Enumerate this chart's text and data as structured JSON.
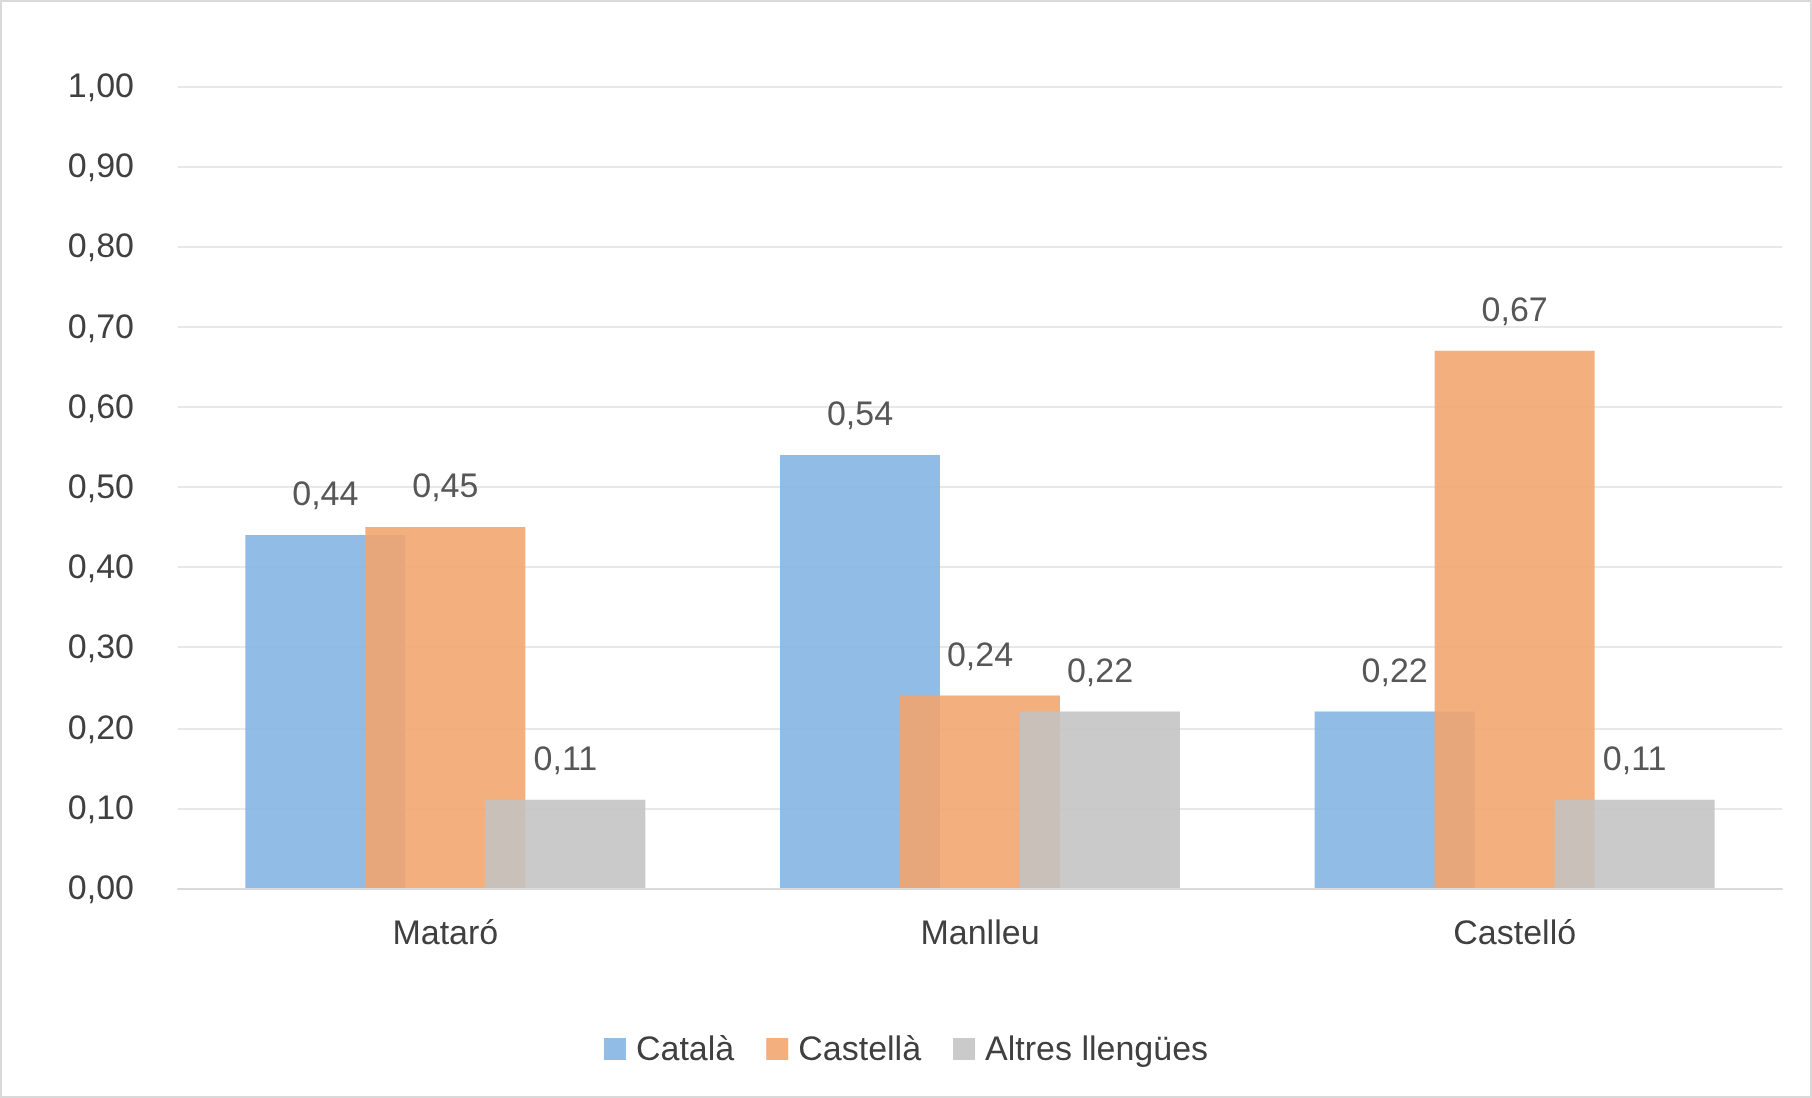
{
  "chart_data": {
    "type": "bar",
    "categories": [
      "Mataró",
      "Manlleu",
      "Castelló"
    ],
    "series": [
      {
        "name": "Català",
        "color": "#82b3e3",
        "values": [
          0.44,
          0.54,
          0.22
        ],
        "value_labels": [
          "0,44",
          "0,54",
          "0,22"
        ]
      },
      {
        "name": "Castellà",
        "color": "#f2a46c",
        "values": [
          0.45,
          0.24,
          0.67
        ],
        "value_labels": [
          "0,45",
          "0,24",
          "0,67"
        ]
      },
      {
        "name": "Altres llengües",
        "color": "#c3c3c3",
        "values": [
          0.11,
          0.22,
          0.11
        ],
        "value_labels": [
          "0,11",
          "0,22",
          "0,11"
        ]
      }
    ],
    "ylim": [
      0,
      1
    ],
    "yticks": [
      {
        "value": 0,
        "label": "0,00"
      },
      {
        "value": 0.1,
        "label": "0,10"
      },
      {
        "value": 0.2,
        "label": "0,20"
      },
      {
        "value": 0.3,
        "label": "0,30"
      },
      {
        "value": 0.4,
        "label": "0,40"
      },
      {
        "value": 0.5,
        "label": "0,50"
      },
      {
        "value": 0.6,
        "label": "0,60"
      },
      {
        "value": 0.7,
        "label": "0,70"
      },
      {
        "value": 0.8,
        "label": "0,80"
      },
      {
        "value": 0.9,
        "label": "0,90"
      },
      {
        "value": 1,
        "label": "1,00"
      }
    ],
    "grid": "y",
    "legend": "bottom"
  }
}
